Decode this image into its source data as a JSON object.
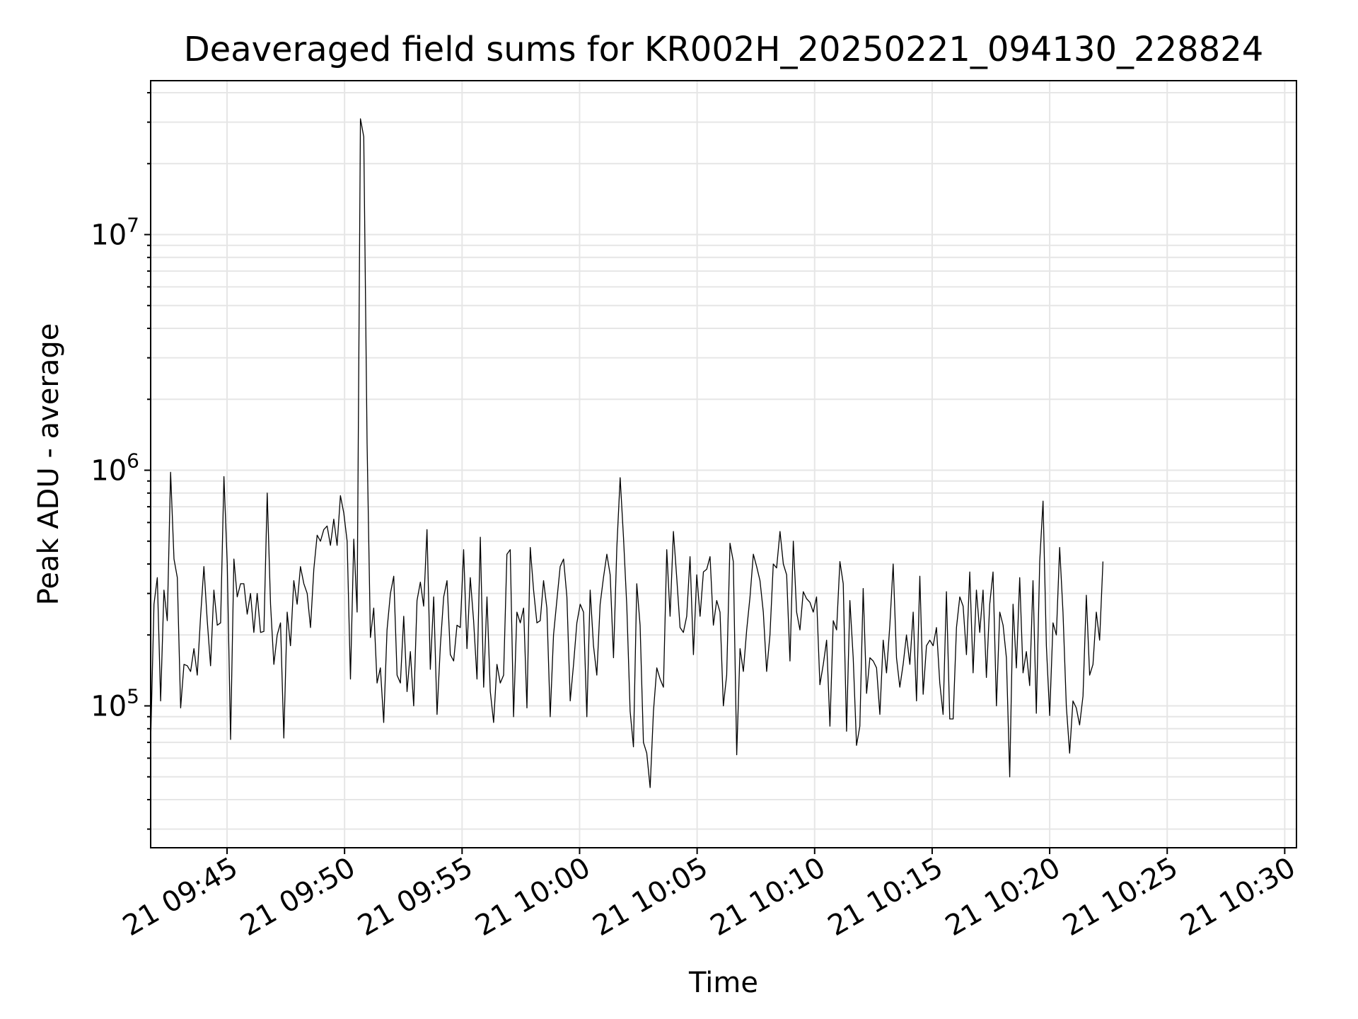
{
  "chart_data": {
    "type": "line",
    "title": "Deaveraged field sums for KR002H_20250221_094130_228824",
    "xlabel": "Time",
    "ylabel": "Peak ADU - average",
    "yscale": "log",
    "grid": true,
    "xlim": [
      "21 09:41:45",
      "21 10:30:30"
    ],
    "ylim": [
      25000,
      45000000
    ],
    "x_ticks": [
      {
        "t": "21 09:45:00",
        "label": "21 09:45"
      },
      {
        "t": "21 09:50:00",
        "label": "21 09:50"
      },
      {
        "t": "21 09:55:00",
        "label": "21 09:55"
      },
      {
        "t": "21 10:00:00",
        "label": "21 10:00"
      },
      {
        "t": "21 10:05:00",
        "label": "21 10:05"
      },
      {
        "t": "21 10:10:00",
        "label": "21 10:10"
      },
      {
        "t": "21 10:15:00",
        "label": "21 10:15"
      },
      {
        "t": "21 10:20:00",
        "label": "21 10:20"
      },
      {
        "t": "21 10:25:00",
        "label": "21 10:25"
      },
      {
        "t": "21 10:30:00",
        "label": "21 10:30"
      }
    ],
    "y_ticks": [
      {
        "value": 100000,
        "base": "10",
        "exp": "5"
      },
      {
        "value": 1000000,
        "base": "10",
        "exp": "6"
      },
      {
        "value": 10000000,
        "base": "10",
        "exp": "7"
      }
    ],
    "series": [
      {
        "color": "#000000",
        "x_start": "21 09:41:45",
        "x_step_seconds": 8.5,
        "values": [
          70000,
          270000,
          350000,
          105000,
          310000,
          230000,
          980000,
          420000,
          350000,
          98000,
          150000,
          148000,
          140000,
          175000,
          135000,
          240000,
          390000,
          230000,
          148000,
          310000,
          220000,
          225000,
          940000,
          400000,
          72000,
          420000,
          290000,
          330000,
          330000,
          245000,
          300000,
          205000,
          300000,
          205000,
          207000,
          800000,
          270000,
          150000,
          200000,
          225000,
          73000,
          250000,
          180000,
          340000,
          270000,
          390000,
          330000,
          300000,
          215000,
          380000,
          530000,
          500000,
          560000,
          580000,
          480000,
          620000,
          480000,
          780000,
          660000,
          500000,
          130000,
          510000,
          250000,
          31000000,
          26000000,
          1300000,
          195000,
          260000,
          125000,
          145000,
          85000,
          210000,
          300000,
          355000,
          135000,
          125000,
          240000,
          115000,
          170000,
          100000,
          280000,
          335000,
          265000,
          560000,
          143000,
          290000,
          92000,
          180000,
          290000,
          340000,
          165000,
          155000,
          220000,
          215000,
          460000,
          175000,
          350000,
          230000,
          130000,
          520000,
          120000,
          290000,
          115000,
          85000,
          150000,
          125000,
          135000,
          440000,
          460000,
          90000,
          250000,
          225000,
          260000,
          98000,
          470000,
          310000,
          225000,
          230000,
          340000,
          260000,
          90000,
          200000,
          280000,
          390000,
          420000,
          290000,
          105000,
          150000,
          225000,
          270000,
          250000,
          90000,
          310000,
          180000,
          135000,
          270000,
          350000,
          440000,
          360000,
          160000,
          470000,
          930000,
          520000,
          265000,
          95000,
          67000,
          330000,
          220000,
          70000,
          63000,
          45000,
          95000,
          145000,
          130000,
          120000,
          460000,
          240000,
          550000,
          350000,
          215000,
          205000,
          240000,
          430000,
          165000,
          360000,
          240000,
          370000,
          380000,
          430000,
          220000,
          280000,
          250000,
          100000,
          135000,
          490000,
          410000,
          62000,
          175000,
          140000,
          210000,
          290000,
          440000,
          390000,
          340000,
          250000,
          140000,
          200000,
          400000,
          385000,
          550000,
          400000,
          360000,
          155000,
          500000,
          250000,
          210000,
          305000,
          285000,
          275000,
          250000,
          290000,
          123000,
          150000,
          190000,
          82000,
          230000,
          210000,
          410000,
          330000,
          78000,
          280000,
          160000,
          68000,
          82000,
          315000,
          113000,
          160000,
          155000,
          145000,
          92000,
          190000,
          138000,
          220000,
          400000,
          160000,
          120000,
          150000,
          200000,
          150000,
          250000,
          105000,
          355000,
          112000,
          180000,
          190000,
          180000,
          215000,
          125000,
          92000,
          305000,
          88000,
          88000,
          215000,
          290000,
          265000,
          165000,
          370000,
          138000,
          310000,
          205000,
          310000,
          132000,
          270000,
          370000,
          100000,
          250000,
          220000,
          160000,
          50000,
          270000,
          145000,
          350000,
          138000,
          170000,
          122000,
          340000,
          93000,
          410000,
          740000,
          180000,
          91000,
          225000,
          200000,
          470000,
          250000,
          100000,
          63000,
          105000,
          98000,
          83000,
          110000,
          295000,
          135000,
          150000,
          250000,
          190000,
          410000
        ]
      }
    ]
  }
}
